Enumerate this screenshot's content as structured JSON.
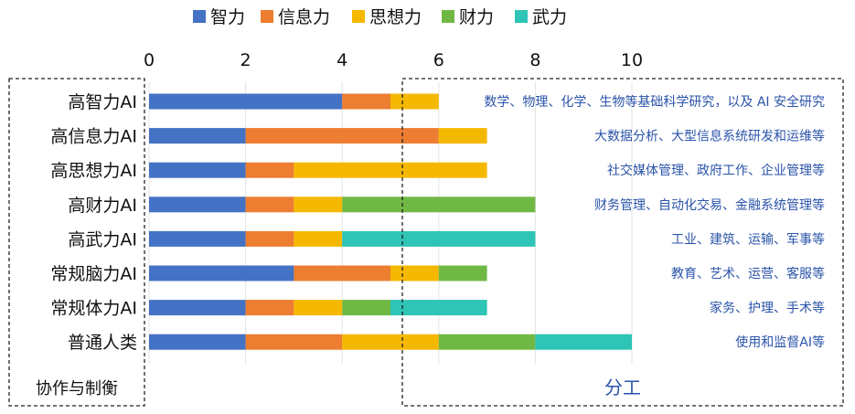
{
  "chart_data": {
    "type": "bar",
    "orientation": "horizontal",
    "stacked": true,
    "title": "",
    "xlabel": "",
    "ylabel": "",
    "xlim": [
      0,
      10
    ],
    "xticks": [
      0,
      2,
      4,
      6,
      8,
      10
    ],
    "x_axis_position": "top",
    "grid": true,
    "legend_position": "top",
    "categories": [
      "高智力AI",
      "高信息力AI",
      "高思想力AI",
      "高财力AI",
      "高武力AI",
      "常规脑力AI",
      "常规体力AI",
      "普通人类"
    ],
    "series": [
      {
        "name": "智力",
        "color": "#4472c4",
        "values": [
          4,
          2,
          2,
          2,
          2,
          3,
          2,
          2
        ]
      },
      {
        "name": "信息力",
        "color": "#ed7d31",
        "values": [
          1,
          4,
          1,
          1,
          1,
          2,
          1,
          2
        ]
      },
      {
        "name": "思想力",
        "color": "#f5b800",
        "values": [
          1,
          1,
          4,
          1,
          1,
          1,
          1,
          2
        ]
      },
      {
        "name": "财力",
        "color": "#70b844",
        "values": [
          0,
          0,
          0,
          4,
          0,
          1,
          1,
          2
        ]
      },
      {
        "name": "武力",
        "color": "#2ec4b6",
        "values": [
          0,
          0,
          0,
          0,
          4,
          0,
          2,
          2
        ]
      }
    ],
    "annotations": [
      "数学、物理、化学、生物等基础科学研究，以及 AI 安全研究",
      "大数据分析、大型信息系统研发和运维等",
      "社交媒体管理、政府工作、企业管理等",
      "财务管理、自动化交易、金融系统管理等",
      "工业、建筑、运输、军事等",
      "教育、艺术、运营、客服等",
      "家务、护理、手术等",
      "使用和监督AI等"
    ],
    "left_box_label": "协作与制衡",
    "right_box_label": "分工"
  }
}
